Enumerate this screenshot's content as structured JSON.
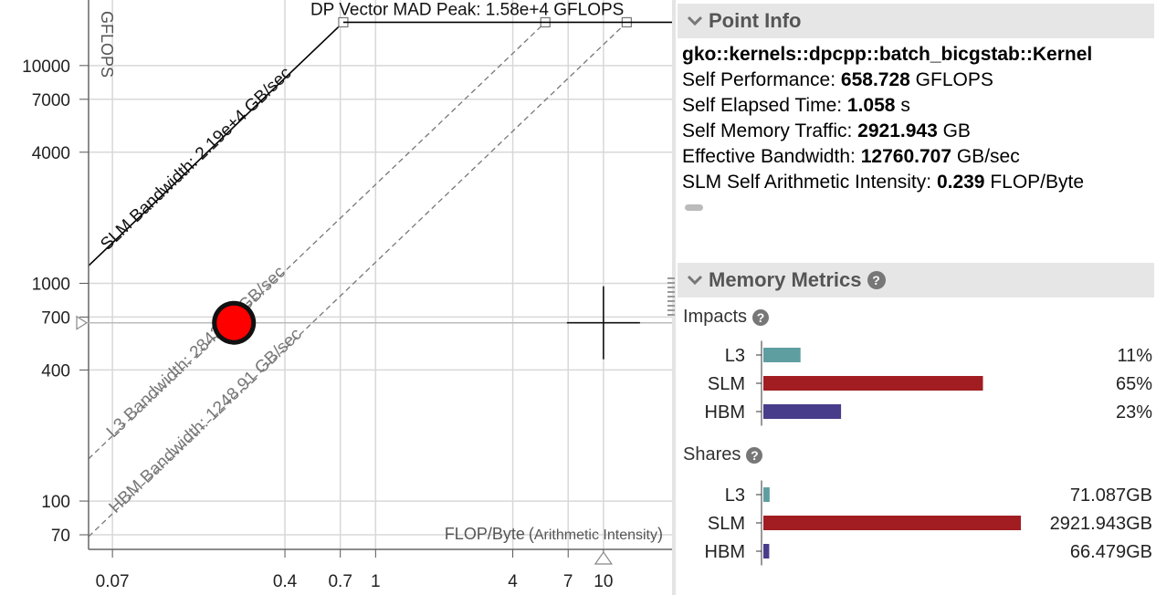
{
  "chart_data": {
    "type": "scatter",
    "xscale": "log",
    "yscale": "log",
    "xlabel": "FLOP/Byte",
    "xlabel_sub": "Arithmetic Intensity",
    "ylabel": "GFLOPS",
    "xlim": [
      0.055,
      20
    ],
    "ylim": [
      60,
      20000
    ],
    "x_ticks": [
      "0.07",
      "0.4",
      "0.7",
      "1",
      "4",
      "7",
      "10"
    ],
    "x_tick_values": [
      0.07,
      0.4,
      0.7,
      1,
      4,
      7,
      10
    ],
    "y_ticks": [
      "10000",
      "7000",
      "4000",
      "1000",
      "700",
      "400",
      "100",
      "70"
    ],
    "y_tick_values": [
      10000,
      7000,
      4000,
      1000,
      700,
      400,
      100,
      70
    ],
    "roofs": [
      {
        "name": "SLM Bandwidth: 2.19e+4 GB/sec",
        "bandwidth": 21900,
        "style": "solid"
      },
      {
        "name": "L3 Bandwidth: 2842.85 GB/sec",
        "bandwidth": 2842.85,
        "style": "dashed"
      },
      {
        "name": "HBM Bandwidth: 1248.91 GB/sec",
        "bandwidth": 1248.91,
        "style": "dashed"
      }
    ],
    "compute_roof": {
      "name": "DP Vector MAD Peak: 1.58e+4 GFLOPS",
      "gflops": 15800
    },
    "point": {
      "x": 0.239,
      "y": 658.728,
      "color": "#ff0000"
    },
    "crosshair": {
      "x": 10,
      "y": 658.728
    }
  },
  "point_info": {
    "title": "Point Info",
    "kernel": "gko::kernels::dpcpp::batch_bicgstab::Kernel",
    "rows": [
      {
        "label": "Self Performance: ",
        "value": "658.728",
        "unit": " GFLOPS"
      },
      {
        "label": "Self Elapsed Time: ",
        "value": "1.058",
        "unit": " s"
      },
      {
        "label": "Self Memory Traffic: ",
        "value": "2921.943",
        "unit": " GB"
      },
      {
        "label": "Effective Bandwidth: ",
        "value": "12760.707",
        "unit": " GB/sec"
      },
      {
        "label": "SLM Self Arithmetic Intensity: ",
        "value": "0.239",
        "unit": " FLOP/Byte"
      }
    ]
  },
  "memory_metrics": {
    "title": "Memory Metrics",
    "impacts_label": "Impacts",
    "shares_label": "Shares",
    "impacts": [
      {
        "name": "L3",
        "fraction": 0.11,
        "text": "11%",
        "color": "#5f9ea0"
      },
      {
        "name": "SLM",
        "fraction": 0.65,
        "text": "65%",
        "color": "#a11d21"
      },
      {
        "name": "HBM",
        "fraction": 0.23,
        "text": "23%",
        "color": "#483d8b"
      }
    ],
    "shares": [
      {
        "name": "L3",
        "value": 71.087,
        "text": "71.087GB",
        "color": "#5f9ea0"
      },
      {
        "name": "SLM",
        "value": 2921.943,
        "text": "2921.943GB",
        "color": "#a11d21"
      },
      {
        "name": "HBM",
        "value": 66.479,
        "text": "66.479GB",
        "color": "#483d8b"
      }
    ],
    "shares_max": 2921.943
  },
  "icons": {
    "collapse": "chevron-down-icon",
    "help": "question-icon"
  }
}
